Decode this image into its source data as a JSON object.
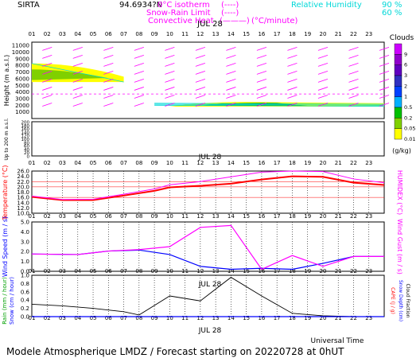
{
  "header": {
    "station": "SIRTA",
    "coords": "94.6934?N",
    "legend_isotherm": "0°C isotherm",
    "legend_snow": "Snow-Rain Limit",
    "legend_conv": "Convective Heat",
    "legend_conv_unit": "(°C/minute)",
    "legend_rh": "Relative Humidity",
    "rh_90": "90 %",
    "rh_60": "60 %",
    "dashes": "(----)",
    "conv_line": "(———)"
  },
  "colors": {
    "magenta": "#ff00ff",
    "cyan": "#00d8d8",
    "red": "#ff0000",
    "blue": "#0000ff",
    "green": "#00a000",
    "black": "#000000"
  },
  "hours": [
    "01",
    "02",
    "03",
    "04",
    "05",
    "06",
    "07",
    "08",
    "09",
    "10",
    "11",
    "12",
    "13",
    "14",
    "15",
    "16",
    "17",
    "18",
    "19",
    "20",
    "21",
    "22",
    "23"
  ],
  "date_label": "JUL 28",
  "footer": {
    "title": "Modele Atmospherique LMDZ / Forecast starting on 20220728 at 0hUT",
    "xlabel": "Universal Time"
  },
  "chart_data": [
    {
      "type": "heatmap",
      "name": "clouds",
      "ylabel": "Height (m a.s.l.)",
      "ylabel2": "Up to 200 m a.s.l.",
      "yticks_top": [
        "11000",
        "10000",
        "9000",
        "8000",
        "7000",
        "6000",
        "5000",
        "4000",
        "3000",
        "2000",
        "1000"
      ],
      "yticks_bottom": [
        "200",
        "180",
        "160",
        "140",
        "120",
        "100",
        "80",
        "60",
        "40",
        "20",
        "0"
      ],
      "colorbar_title": "Clouds",
      "colorbar_unit": "(g/kg)",
      "colorbar_ticks": [
        "9",
        "6",
        "3",
        "2",
        "1",
        "0.5",
        "0.2",
        "0.05",
        "0.01"
      ],
      "colorbar_colors": [
        "#cc00ff",
        "#9000cc",
        "#6000c0",
        "#3030c0",
        "#0040ff",
        "#00b0ff",
        "#00c000",
        "#80d000",
        "#ffff00"
      ],
      "isotherm_height_m": 3700,
      "cloud_layers": [
        {
          "hours": [
            0,
            1,
            2,
            3,
            4,
            5,
            6
          ],
          "bottom_m": 5500,
          "top_m": 8300,
          "level": "0.05-0.2"
        },
        {
          "hours": [
            9,
            10,
            11,
            12,
            13,
            14,
            15,
            16,
            17,
            18,
            19,
            20,
            21,
            22,
            23
          ],
          "bottom_m": 1800,
          "top_m": 2500,
          "level": "0.01-0.2"
        }
      ]
    },
    {
      "type": "line",
      "name": "temperature",
      "ylabel": "Temperature (°C)",
      "ylabel2": "HUMIDEX (°C)",
      "ylim": [
        10,
        26
      ],
      "yticks": [
        "10.0",
        "12.0",
        "14.0",
        "16.0",
        "18.0",
        "20.0",
        "22.0",
        "24.0",
        "26.0"
      ],
      "x": [
        0,
        2,
        4,
        6,
        8,
        9,
        11,
        13,
        15,
        17,
        19,
        21,
        23
      ],
      "series": [
        {
          "values": [
            16.2,
            15.0,
            15.0,
            16.7,
            18.5,
            19.8,
            20.4,
            21.2,
            22.8,
            24.0,
            23.8,
            21.6,
            20.7
          ]
        },
        {
          "values": [
            16.5,
            15.2,
            15.3,
            17.2,
            19.2,
            20.8,
            22.0,
            23.8,
            25.6,
            26.0,
            25.8,
            23.0,
            21.6
          ]
        }
      ]
    },
    {
      "type": "line",
      "name": "wind",
      "ylabel": "Wind Speed (m / s)",
      "ylabel2": "Wind Gust (m / s)",
      "ylim": [
        0,
        5
      ],
      "yticks": [
        "0.0",
        "1.0",
        "2.0",
        "3.0",
        "4.0",
        "5.0"
      ],
      "x": [
        0,
        3,
        5,
        7,
        9,
        11,
        13,
        15,
        17,
        19,
        21,
        23
      ],
      "series": [
        {
          "values": [
            1.75,
            1.7,
            2.05,
            2.15,
            1.7,
            0.5,
            0.2,
            0.3,
            0.2,
            0.8,
            1.5,
            1.5
          ]
        },
        {
          "values": [
            1.75,
            1.7,
            2.05,
            2.2,
            2.5,
            4.45,
            4.65,
            0.2,
            1.6,
            0.5,
            1.5,
            1.5
          ]
        }
      ]
    },
    {
      "type": "line",
      "name": "precipitation",
      "ylabel": "Rain (mm / hour)",
      "ylabel_b": "Snow (cm / hour)",
      "ylabel2": "CAPE (J / g)",
      "ylabel2_b": "Snow Depth (cm)",
      "ylabel2_c": "Cloud Fraction",
      "ylim": [
        0,
        1.0
      ],
      "yticks": [
        "0.0",
        "0.2",
        "0.4",
        "0.6",
        "0.8",
        "1.0"
      ],
      "x": [
        0,
        2,
        4,
        6,
        7,
        9,
        11,
        13,
        15,
        17,
        19,
        21,
        23
      ],
      "series": [
        {
          "values": [
            0.3,
            0.26,
            0.2,
            0.12,
            0.04,
            0.5,
            0.38,
            0.95,
            0.5,
            0.08,
            0.02,
            0.0,
            0.0
          ]
        }
      ]
    }
  ]
}
